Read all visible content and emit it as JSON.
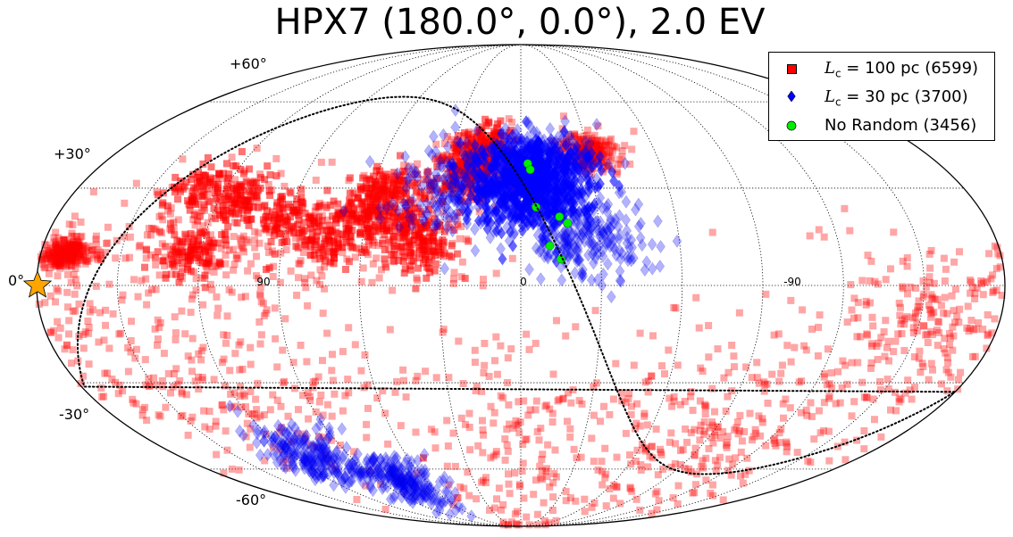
{
  "chart_data": {
    "type": "scatter",
    "projection": "mollweide",
    "title": "HPX7 (180.0°, 0.0°), 2.0 EV",
    "lat_labels": [
      "+60°",
      "+30°",
      "0°",
      "-30°",
      "-60°"
    ],
    "lon_labels": [
      "90",
      "0",
      "-90"
    ],
    "grid": true,
    "legend_position": "top-right",
    "series": [
      {
        "name": "L_c = 100 pc (6599)",
        "legend_math": "L",
        "legend_sub": "c",
        "legend_rest": "= 100 pc (6599)",
        "marker": "square",
        "color": "#ff0000",
        "opacity": 0.35,
        "count": 6599,
        "clusters": [
          {
            "lon": 50,
            "lat": 18,
            "spread": 22
          },
          {
            "lon": 115,
            "lat": 15,
            "spread": 28
          },
          {
            "lon": 20,
            "lat": 38,
            "spread": 12
          },
          {
            "lon": -30,
            "lat": 42,
            "spread": 8
          },
          {
            "lon": 170,
            "lat": 10,
            "spread": 6
          },
          {
            "lon": -160,
            "lat": -10,
            "spread": 30
          },
          {
            "lon": 120,
            "lat": -30,
            "spread": 40
          },
          {
            "lon": -100,
            "lat": -45,
            "spread": 40
          },
          {
            "lon": 0,
            "lat": -50,
            "spread": 50
          }
        ]
      },
      {
        "name": "L_c = 30 pc (3700)",
        "legend_math": "L",
        "legend_sub": "c",
        "legend_rest": "= 30 pc (3700)",
        "marker": "diamond",
        "color": "#0000ff",
        "opacity": 0.3,
        "count": 3700,
        "clusters": [
          {
            "lon": -10,
            "lat": 38,
            "spread": 14
          },
          {
            "lon": 25,
            "lat": 30,
            "spread": 18
          },
          {
            "lon": -25,
            "lat": 15,
            "spread": 15
          },
          {
            "lon": 75,
            "lat": -65,
            "spread": 12
          },
          {
            "lon": 110,
            "lat": -55,
            "spread": 14
          }
        ]
      },
      {
        "name": "No Random (3456)",
        "marker": "circle",
        "color": "#00ee00",
        "count": 3456,
        "points": [
          {
            "lon": -3,
            "lat": 38
          },
          {
            "lon": -4,
            "lat": 36
          },
          {
            "lon": -6,
            "lat": 24
          },
          {
            "lon": -15,
            "lat": 21
          },
          {
            "lon": -18,
            "lat": 19
          },
          {
            "lon": -11,
            "lat": 12
          },
          {
            "lon": -15,
            "lat": 8
          }
        ]
      }
    ],
    "source_marker": {
      "lon": 180,
      "lat": 0,
      "shape": "star",
      "color": "#ffa500"
    },
    "dotted_curve": "great-circle"
  }
}
